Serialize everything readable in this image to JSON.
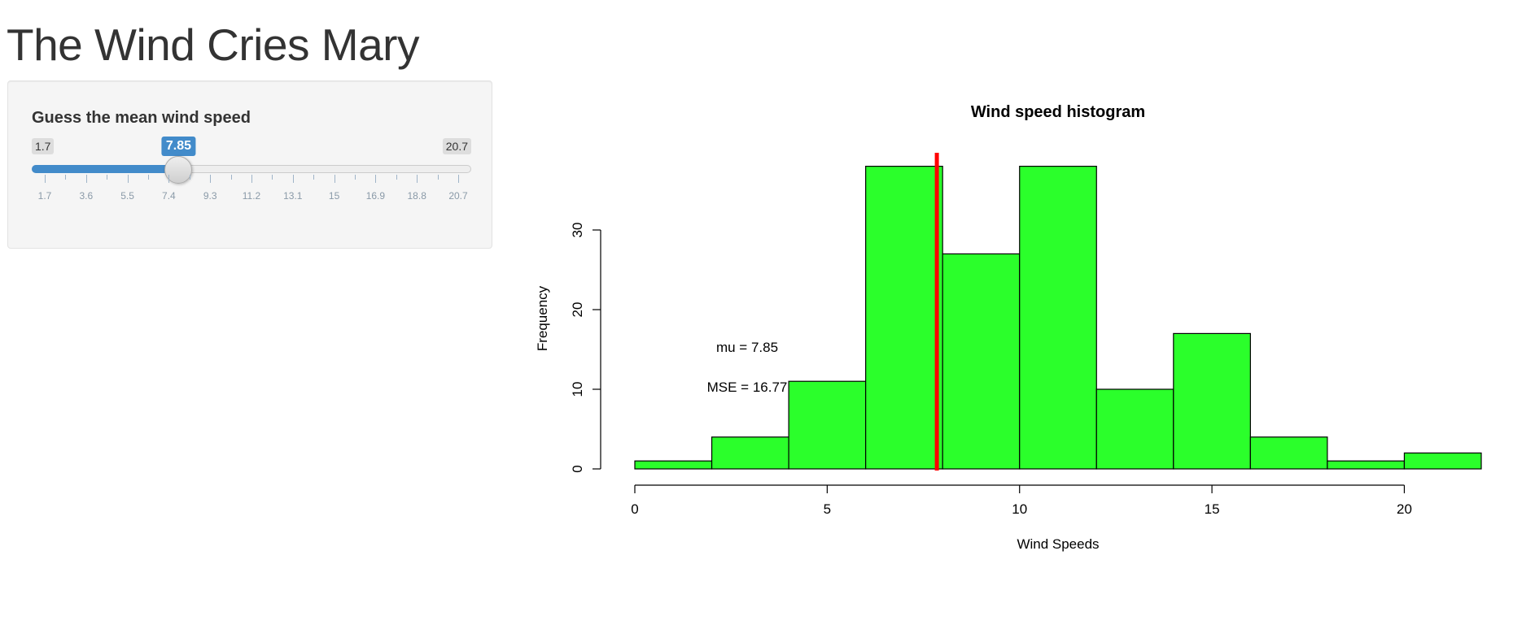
{
  "page": {
    "title": "The Wind Cries Mary"
  },
  "sidebar": {
    "slider": {
      "label": "Guess the mean wind speed",
      "min": 1.7,
      "max": 20.7,
      "value": 7.85,
      "min_label": "1.7",
      "max_label": "20.7",
      "value_label": "7.85",
      "major_ticks": [
        "1.7",
        "3.6",
        "5.5",
        "7.4",
        "9.3",
        "11.2",
        "13.1",
        "15",
        "16.9",
        "18.8",
        "20.7"
      ],
      "minor_ticks_between": 1,
      "fill_color": "#428bca"
    }
  },
  "main": {
    "plot": {
      "annotations": {
        "mu": "mu =  7.85",
        "mse": "MSE =  16.77"
      }
    }
  },
  "chart_data": {
    "type": "bar",
    "title": "Wind speed histogram",
    "xlabel": "Wind Speeds",
    "ylabel": "Frequency",
    "bin_edges": [
      0,
      2,
      4,
      6,
      8,
      10,
      12,
      14,
      16,
      18,
      20,
      22
    ],
    "values": [
      1,
      4,
      11,
      38,
      27,
      38,
      10,
      17,
      4,
      1,
      2
    ],
    "xticks": [
      0,
      5,
      10,
      15,
      20
    ],
    "yticks": [
      0,
      10,
      20,
      30
    ],
    "xlim": [
      0,
      22
    ],
    "ylim": [
      0,
      38
    ],
    "bar_color": "#2bff2b",
    "vline": {
      "x": 7.85,
      "color": "#ff0000"
    },
    "grid": false
  }
}
